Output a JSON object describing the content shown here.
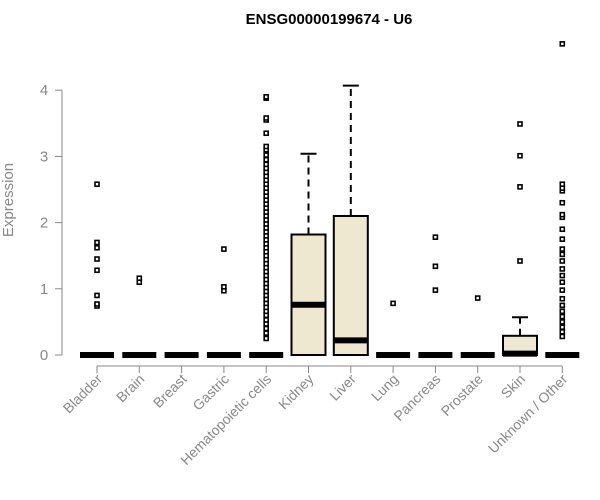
{
  "chart_data": {
    "type": "boxplot",
    "title": "ENSG00000199674 - U6",
    "xlabel": "",
    "ylabel": "Expression",
    "ylim": [
      0,
      4.8
    ],
    "yticks": [
      0,
      1,
      2,
      3,
      4
    ],
    "box_fill": "#efe8d0",
    "stroke_color": "#000000",
    "axis_color": "#888888",
    "categories": [
      "Bladder",
      "Brain",
      "Breast",
      "Gastric",
      "Hematopoietic cells",
      "Kidney",
      "Liver",
      "Lung",
      "Pancreas",
      "Prostate",
      "Skin",
      "Unknown / Other"
    ],
    "series": [
      {
        "name": "Bladder",
        "q1": 0,
        "median": 0,
        "q3": 0,
        "whisker_low": 0,
        "whisker_high": 0,
        "outliers": [
          0.74,
          0.77,
          0.9,
          1.28,
          1.45,
          1.62,
          1.7,
          2.58
        ]
      },
      {
        "name": "Brain",
        "q1": 0,
        "median": 0,
        "q3": 0,
        "whisker_low": 0,
        "whisker_high": 0,
        "outliers": [
          1.1,
          1.16
        ]
      },
      {
        "name": "Breast",
        "q1": 0,
        "median": 0,
        "q3": 0,
        "whisker_low": 0,
        "whisker_high": 0,
        "outliers": []
      },
      {
        "name": "Gastric",
        "q1": 0,
        "median": 0,
        "q3": 0,
        "whisker_low": 0,
        "whisker_high": 0,
        "outliers": [
          0.97,
          1.03,
          1.6
        ]
      },
      {
        "name": "Hematopoietic cells",
        "q1": 0,
        "median": 0,
        "q3": 0,
        "whisker_low": 0,
        "whisker_high": 0,
        "outliers": [
          0.25,
          0.33,
          0.4,
          0.47,
          0.53,
          0.6,
          0.66,
          0.72,
          0.78,
          0.84,
          0.9,
          0.96,
          1.02,
          1.08,
          1.14,
          1.2,
          1.26,
          1.32,
          1.38,
          1.44,
          1.5,
          1.56,
          1.62,
          1.68,
          1.74,
          1.8,
          1.86,
          1.92,
          1.98,
          2.04,
          2.1,
          2.16,
          2.22,
          2.28,
          2.34,
          2.4,
          2.46,
          2.52,
          2.58,
          2.64,
          2.7,
          2.76,
          2.82,
          2.88,
          2.95,
          3.02,
          3.1,
          3.15,
          3.35,
          3.55,
          3.58,
          3.88,
          3.9
        ]
      },
      {
        "name": "Kidney",
        "q1": 0,
        "median": 0.76,
        "q3": 1.82,
        "whisker_low": 0,
        "whisker_high": 3.04,
        "outliers": []
      },
      {
        "name": "Liver",
        "q1": 0,
        "median": 0.22,
        "q3": 2.1,
        "whisker_low": 0,
        "whisker_high": 4.07,
        "outliers": []
      },
      {
        "name": "Lung",
        "q1": 0,
        "median": 0,
        "q3": 0,
        "whisker_low": 0,
        "whisker_high": 0,
        "outliers": [
          0.78
        ]
      },
      {
        "name": "Pancreas",
        "q1": 0,
        "median": 0,
        "q3": 0,
        "whisker_low": 0,
        "whisker_high": 0,
        "outliers": [
          0.98,
          1.34,
          1.78
        ]
      },
      {
        "name": "Prostate",
        "q1": 0,
        "median": 0,
        "q3": 0,
        "whisker_low": 0,
        "whisker_high": 0,
        "outliers": [
          0.86
        ]
      },
      {
        "name": "Skin",
        "q1": 0,
        "median": 0.02,
        "q3": 0.29,
        "whisker_low": 0,
        "whisker_high": 0.57,
        "outliers": [
          1.42,
          2.54,
          3.01,
          3.49
        ]
      },
      {
        "name": "Unknown / Other",
        "q1": 0,
        "median": 0,
        "q3": 0,
        "whisker_low": 0,
        "whisker_high": 0,
        "outliers": [
          0.28,
          0.35,
          0.42,
          0.5,
          0.58,
          0.66,
          0.75,
          0.85,
          0.98,
          1.1,
          1.2,
          1.3,
          1.42,
          1.52,
          1.6,
          1.75,
          1.9,
          2.08,
          2.12,
          2.3,
          2.48,
          2.52,
          2.58,
          4.7
        ]
      }
    ]
  }
}
